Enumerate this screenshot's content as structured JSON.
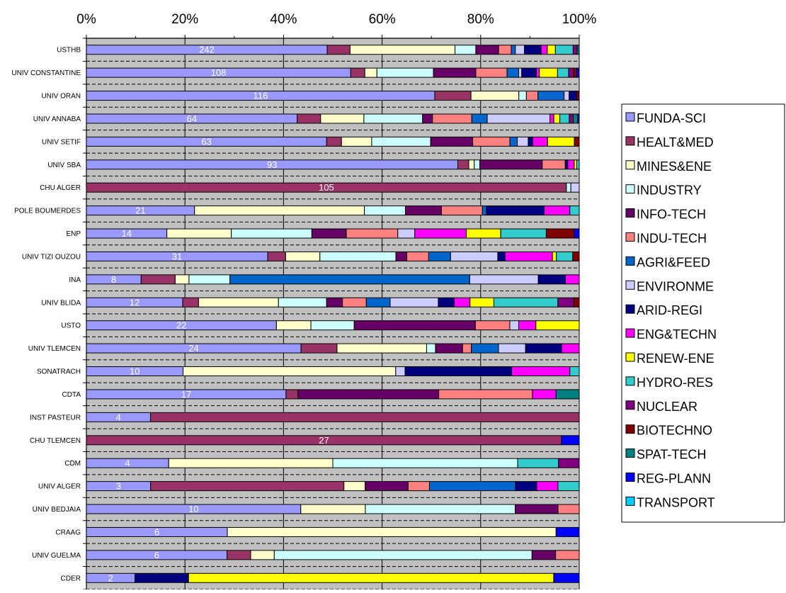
{
  "chart_data": {
    "type": "bar",
    "orientation": "horizontal",
    "stacked": "percent",
    "xlim": [
      0,
      100
    ],
    "x_ticks": [
      "0%",
      "20%",
      "40%",
      "60%",
      "80%",
      "100%"
    ],
    "grid": true,
    "legend_position": "right",
    "categories": [
      "USTHB",
      "UNIV CONSTANTINE",
      "UNIV ORAN",
      "UNIV ANNABA",
      "UNIV SETIF",
      "UNIV SBA",
      "CHU ALGER",
      "POLE BOUMERDES",
      "ENP",
      "UNIV TIZI OUZOU",
      "INA",
      "UNIV BLIDA",
      "USTO",
      "UNIV TLEMCEN",
      "SONATRACH",
      "CDTA",
      "INST PASTEUR",
      "CHU TLEMCEN",
      "CDM",
      "UNIV ALGER",
      "UNIV BEDJAIA",
      "CRAAG",
      "UNIV GUELMA",
      "CDER"
    ],
    "data_labels": [
      "242",
      "108",
      "116",
      "64",
      "63",
      "93",
      "105",
      "21",
      "14",
      "31",
      "8",
      "12",
      "22",
      "24",
      "10",
      "17",
      "4",
      "27",
      "4",
      "3",
      "10",
      "6",
      "6",
      "2"
    ],
    "series": [
      {
        "name": "FUNDA-SCI",
        "color": "#9999FF",
        "values": [
          47.5,
          52.4,
          69.2,
          42.4,
          48.5,
          74.3,
          0,
          21.9,
          16.1,
          36.5,
          11.1,
          19.4,
          38.6,
          43.6,
          19.6,
          40.5,
          13.0,
          0,
          16.7,
          13.0,
          43.5,
          28.6,
          28.6,
          9.5
        ]
      },
      {
        "name": "HEALT&MED",
        "color": "#993366",
        "values": [
          4.5,
          2.8,
          7.2,
          4.7,
          3.0,
          2.2,
          97.4,
          0,
          0,
          3.6,
          6.9,
          3.2,
          0,
          7.3,
          0,
          2.4,
          87.0,
          96.4,
          0,
          39.1,
          0,
          0,
          4.8,
          0
        ]
      },
      {
        "name": "MINES&ENE",
        "color": "#FFFFCC",
        "values": [
          20.7,
          2.4,
          9.5,
          8.7,
          6.1,
          1.1,
          0,
          34.4,
          12.9,
          6.9,
          2.8,
          16.1,
          7.0,
          18.2,
          43.1,
          0,
          0,
          0,
          33.3,
          4.3,
          13.1,
          66.7,
          4.8,
          0
        ]
      },
      {
        "name": "INDUSTRY",
        "color": "#CCFFFF",
        "values": [
          4.1,
          11.2,
          1.5,
          11.8,
          11.9,
          1.1,
          0.9,
          8.3,
          16.1,
          15.3,
          8.3,
          9.7,
          8.8,
          1.8,
          0,
          0,
          0,
          0,
          37.5,
          0,
          30.4,
          0,
          52.4,
          0
        ]
      },
      {
        "name": "INFO-TECH",
        "color": "#660066",
        "values": [
          4.5,
          8.4,
          0,
          2.0,
          8.5,
          12.5,
          0,
          7.3,
          6.9,
          2.2,
          0,
          3.2,
          24.6,
          5.5,
          0,
          28.6,
          0,
          0,
          0,
          8.7,
          8.7,
          0,
          4.8,
          0
        ]
      },
      {
        "name": "INDU-TECH",
        "color": "#FF8080",
        "values": [
          2.5,
          6.2,
          2.3,
          7.9,
          7.5,
          4.6,
          0,
          8.3,
          10.3,
          4.4,
          0,
          4.8,
          7.0,
          1.8,
          0,
          19.0,
          0,
          0,
          0,
          4.3,
          4.3,
          0,
          4.8,
          0
        ]
      },
      {
        "name": "AGRI&FEED",
        "color": "#0066CC",
        "values": [
          0.8,
          2.3,
          5.2,
          3.1,
          1.5,
          0,
          0,
          0.8,
          0,
          4.4,
          48.6,
          4.8,
          0,
          5.5,
          0,
          0,
          0,
          0,
          0,
          17.4,
          0,
          0,
          0,
          0
        ]
      },
      {
        "name": "ENVIRONME",
        "color": "#CCCCFF",
        "values": [
          1.8,
          0.6,
          1.0,
          12.6,
          2.2,
          0,
          1.7,
          0,
          3.4,
          9.5,
          13.9,
          9.7,
          1.8,
          5.5,
          1.9,
          0,
          0,
          0,
          0,
          0,
          0,
          0,
          0,
          0
        ]
      },
      {
        "name": "ARID-REGI",
        "color": "#000080",
        "values": [
          3.3,
          2.9,
          1.5,
          0,
          0.9,
          0.5,
          0,
          11.7,
          0,
          1.5,
          5.5,
          3.2,
          0,
          7.3,
          21.6,
          0,
          0,
          0,
          0,
          4.3,
          0,
          0,
          0,
          10.5
        ]
      },
      {
        "name": "ENG&TECHN",
        "color": "#FF00FF",
        "values": [
          1.2,
          0.6,
          0,
          0.8,
          3.0,
          1.3,
          0,
          5.2,
          10.3,
          9.5,
          2.8,
          3.2,
          3.5,
          3.6,
          11.8,
          4.8,
          0,
          0,
          0,
          4.3,
          0,
          0,
          0,
          0
        ]
      },
      {
        "name": "RENEW-ENE",
        "color": "#FFFF00",
        "values": [
          1.6,
          3.6,
          0,
          1.2,
          5.4,
          0.5,
          0,
          0,
          6.9,
          0.8,
          0,
          4.8,
          8.8,
          0,
          0,
          0,
          0,
          0,
          0,
          0,
          0,
          0,
          0,
          71.5
        ]
      },
      {
        "name": "HYDRO-RES",
        "color": "#33CCCC",
        "values": [
          3.5,
          2.2,
          0,
          1.9,
          0,
          0.5,
          0,
          1.9,
          9.1,
          3.3,
          0,
          12.9,
          0,
          0,
          1.9,
          0,
          0,
          0,
          8.3,
          4.3,
          0,
          0,
          0,
          0
        ]
      },
      {
        "name": "NUCLEAR",
        "color": "#800080",
        "values": [
          0.8,
          1.0,
          0,
          0.8,
          0,
          0,
          0,
          0,
          0,
          0,
          0,
          3.2,
          0,
          0,
          0,
          0,
          0,
          0,
          4.2,
          0,
          0,
          0,
          0,
          0
        ]
      },
      {
        "name": "BIOTECHNO",
        "color": "#800000",
        "values": [
          0,
          0.6,
          0.5,
          0,
          1.0,
          0,
          0,
          0,
          5.6,
          1.3,
          0,
          1.1,
          0,
          0,
          0,
          0,
          0,
          0,
          0,
          0,
          0,
          0,
          0,
          0
        ]
      },
      {
        "name": "SPAT-TECH",
        "color": "#008080",
        "values": [
          0.4,
          0,
          0,
          0.9,
          0,
          0,
          0,
          0,
          0,
          0,
          0,
          0,
          0,
          0,
          0,
          4.7,
          0,
          0,
          0,
          0,
          0,
          0,
          0,
          0
        ]
      },
      {
        "name": "REG-PLANN",
        "color": "#0000FF",
        "values": [
          0,
          0.5,
          0,
          0.3,
          0,
          0,
          0,
          0,
          1.0,
          0,
          0,
          0,
          0,
          0,
          0,
          0,
          0,
          3.6,
          0,
          0,
          0,
          4.7,
          0,
          5.0
        ]
      },
      {
        "name": "TRANSPORT",
        "color": "#00CCFF",
        "values": [
          0,
          0,
          0,
          0,
          0,
          0,
          0,
          0,
          0,
          0,
          0,
          0,
          0,
          0,
          0,
          0,
          0,
          0,
          0,
          0,
          0,
          0,
          0,
          0
        ]
      }
    ]
  }
}
